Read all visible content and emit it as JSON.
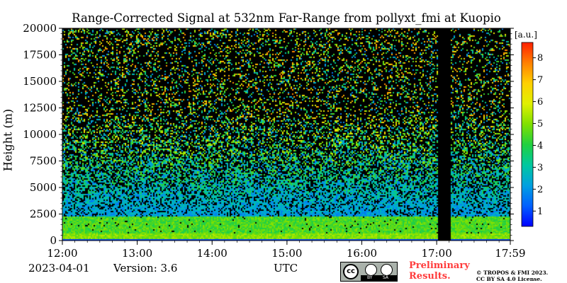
{
  "chart_data": {
    "type": "heatmap",
    "title": "Range-Corrected Signal at 532nm Far-Range from pollyxt_fmi at Kuopio",
    "ylabel": "Height (m)",
    "xlabel": "UTC",
    "x_ticks": [
      "12:00",
      "13:00",
      "14:00",
      "15:00",
      "16:00",
      "17:00",
      "17:59"
    ],
    "x_tick_values": [
      0,
      60,
      120,
      180,
      240,
      300,
      359
    ],
    "xlim": [
      0,
      359
    ],
    "y_ticks": [
      "0",
      "2500",
      "5000",
      "7500",
      "10000",
      "12500",
      "15000",
      "17500",
      "20000"
    ],
    "y_tick_values": [
      0,
      2500,
      5000,
      7500,
      10000,
      12500,
      15000,
      17500,
      20000
    ],
    "ylim": [
      0,
      20000
    ],
    "colorbar": {
      "unit": "[a.u.]",
      "ticks": [
        "1",
        "2",
        "3",
        "4",
        "5",
        "6",
        "7",
        "8"
      ],
      "tick_values": [
        1,
        2,
        3,
        4,
        5,
        6,
        7,
        8
      ],
      "range": [
        0.3,
        8.7
      ],
      "colormap": [
        "#0000ff",
        "#0060ff",
        "#00a0e0",
        "#00c8a0",
        "#20d040",
        "#80e000",
        "#e0f000",
        "#ffd000",
        "#ff8000",
        "#ff2000"
      ]
    },
    "no_data_intervals": [
      [
        300,
        311
      ]
    ],
    "background_color": "#000000"
  },
  "footer": {
    "date": "2023-04-01",
    "version": "Version: 3.6",
    "preliminary": [
      "Preliminary",
      "Results."
    ],
    "copyright": [
      "© TROPOS & FMI 2023.",
      "CC BY SA 4.0 License."
    ],
    "license_badge": {
      "text": "cc",
      "by": "BY",
      "sa": "SA"
    }
  }
}
